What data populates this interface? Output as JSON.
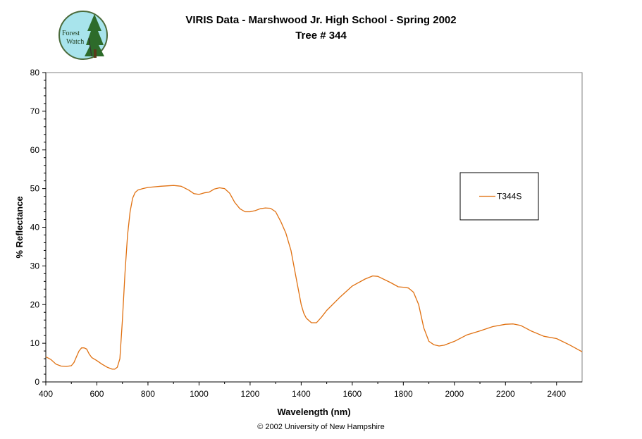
{
  "header": {
    "title_line1": "VIRIS Data - Marshwood Jr. High School - Spring 2002",
    "title_line2": "Tree # 344"
  },
  "logo": {
    "text_line1": "Forest",
    "text_line2": "Watch",
    "icon": "forest-watch-logo-icon"
  },
  "footer": {
    "copyright": "© 2002 University of New Hampshire"
  },
  "colors": {
    "series": "#e07010",
    "logo_bg": "#a8e4ec",
    "logo_border": "#4a6a3a",
    "tree": "#2d6b2a"
  },
  "chart_data": {
    "type": "line",
    "title": "VIRIS Data - Marshwood Jr. High School - Spring 2002",
    "subtitle": "Tree # 344",
    "xlabel": "Wavelength (nm)",
    "ylabel": "% Reflectance",
    "xlim": [
      400,
      2500
    ],
    "ylim": [
      0,
      80
    ],
    "xticks": [
      400,
      600,
      800,
      1000,
      1200,
      1400,
      1600,
      1800,
      2000,
      2200,
      2400
    ],
    "yticks": [
      0,
      10,
      20,
      30,
      40,
      50,
      60,
      70,
      80
    ],
    "grid": false,
    "legend_position": "right",
    "series": [
      {
        "name": "T344S",
        "color": "#e07010",
        "x": [
          400,
          420,
          440,
          460,
          480,
          500,
          510,
          520,
          530,
          540,
          550,
          560,
          570,
          580,
          600,
          620,
          640,
          660,
          670,
          680,
          690,
          700,
          710,
          720,
          730,
          740,
          750,
          760,
          780,
          800,
          850,
          900,
          930,
          960,
          980,
          1000,
          1020,
          1040,
          1060,
          1080,
          1100,
          1120,
          1140,
          1160,
          1180,
          1200,
          1220,
          1240,
          1260,
          1280,
          1300,
          1320,
          1340,
          1360,
          1380,
          1400,
          1410,
          1420,
          1440,
          1460,
          1480,
          1500,
          1550,
          1600,
          1650,
          1680,
          1700,
          1750,
          1780,
          1800,
          1820,
          1840,
          1860,
          1880,
          1900,
          1920,
          1940,
          1960,
          2000,
          2050,
          2100,
          2150,
          2200,
          2230,
          2260,
          2300,
          2350,
          2400,
          2450,
          2500
        ],
        "y": [
          6.5,
          5.8,
          4.6,
          4.1,
          4.0,
          4.2,
          5.0,
          6.5,
          8.0,
          8.8,
          8.8,
          8.5,
          7.2,
          6.3,
          5.5,
          4.6,
          3.8,
          3.3,
          3.3,
          3.8,
          6.0,
          16.0,
          28.0,
          38.0,
          44.0,
          47.5,
          49.0,
          49.6,
          50.0,
          50.3,
          50.6,
          50.8,
          50.6,
          49.6,
          48.7,
          48.5,
          48.9,
          49.1,
          49.9,
          50.2,
          50.0,
          48.8,
          46.4,
          44.8,
          44.0,
          44.0,
          44.3,
          44.8,
          45.0,
          44.9,
          44.0,
          41.5,
          38.5,
          34.0,
          27.0,
          20.0,
          17.8,
          16.5,
          15.3,
          15.3,
          16.8,
          18.5,
          21.8,
          24.8,
          26.6,
          27.4,
          27.3,
          25.7,
          24.6,
          24.5,
          24.3,
          23.2,
          20.0,
          14.0,
          10.5,
          9.6,
          9.3,
          9.5,
          10.5,
          12.2,
          13.2,
          14.3,
          14.9,
          15.0,
          14.6,
          13.2,
          11.8,
          11.2,
          9.6,
          7.8
        ]
      }
    ]
  }
}
